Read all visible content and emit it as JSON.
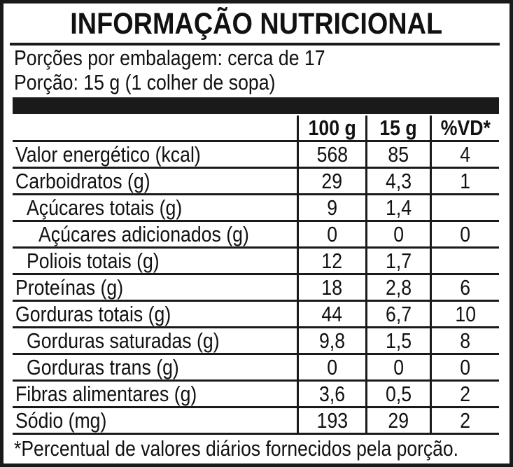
{
  "title": "INFORMAÇÃO NUTRICIONAL",
  "servings_per_package": "Porções por embalagem: cerca de 17",
  "serving_size": "Porção: 15 g (1 colher de sopa)",
  "columns": [
    "",
    "100 g",
    "15 g",
    "%VD*"
  ],
  "rows": [
    {
      "label": "Valor energético (kcal)",
      "indent": 0,
      "per100": "568",
      "perPortion": "85",
      "vd": "4"
    },
    {
      "label": "Carboidratos (g)",
      "indent": 0,
      "per100": "29",
      "perPortion": "4,3",
      "vd": "1"
    },
    {
      "label": "Açúcares totais (g)",
      "indent": 1,
      "per100": "9",
      "perPortion": "1,4",
      "vd": ""
    },
    {
      "label": "Açúcares adicionados (g)",
      "indent": 2,
      "per100": "0",
      "perPortion": "0",
      "vd": "0"
    },
    {
      "label": "Poliois totais (g)",
      "indent": 1,
      "per100": "12",
      "perPortion": "1,7",
      "vd": ""
    },
    {
      "label": "Proteínas (g)",
      "indent": 0,
      "per100": "18",
      "perPortion": "2,8",
      "vd": "6"
    },
    {
      "label": "Gorduras totais (g)",
      "indent": 0,
      "per100": "44",
      "perPortion": "6,7",
      "vd": "10"
    },
    {
      "label": "Gorduras saturadas (g)",
      "indent": 1,
      "per100": "9,8",
      "perPortion": "1,5",
      "vd": "8"
    },
    {
      "label": "Gorduras trans (g)",
      "indent": 1,
      "per100": "0",
      "perPortion": "0",
      "vd": "0"
    },
    {
      "label": "Fibras alimentares (g)",
      "indent": 0,
      "per100": "3,6",
      "perPortion": "0,5",
      "vd": "2"
    },
    {
      "label": "Sódio (mg)",
      "indent": 0,
      "per100": "193",
      "perPortion": "29",
      "vd": "2"
    }
  ],
  "footnote": "*Percentual de valores diários fornecidos pela porção."
}
